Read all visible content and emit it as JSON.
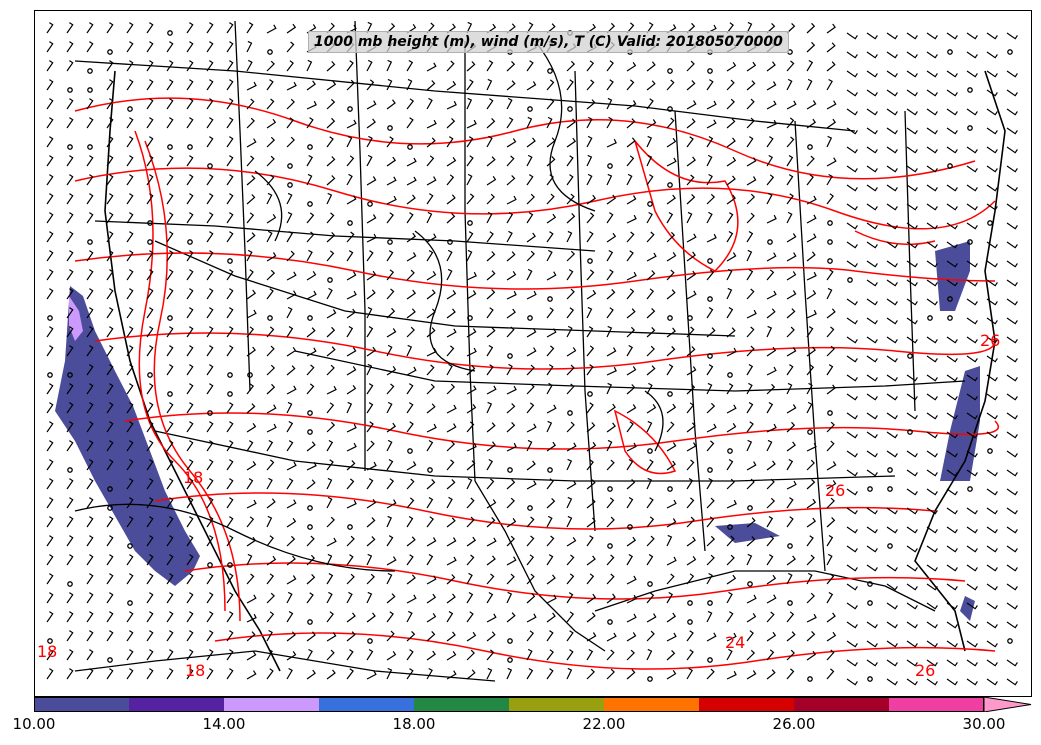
{
  "title": "1000 mb height (m), wind (m/s), T (C) Valid: 201805070000",
  "colorbar": {
    "colors": [
      "#4b4d9a",
      "#5522a2",
      "#cc99ff",
      "#3870dc",
      "#228844",
      "#98a010",
      "#ff7300",
      "#d50000",
      "#a5002a",
      "#f03fa3",
      "#ff99cc"
    ],
    "tick_labels": [
      "10.00",
      "14.00",
      "18.00",
      "22.00",
      "26.00",
      "30.00"
    ],
    "min": 10,
    "max": 30
  },
  "contour_labels": [
    {
      "text": "18",
      "color": "#ff0000"
    },
    {
      "text": "18",
      "color": "#ff0000"
    },
    {
      "text": "18",
      "color": "#ff0000"
    },
    {
      "text": "24",
      "color": "#ff0000"
    },
    {
      "text": "26",
      "color": "#ff0000"
    },
    {
      "text": "26",
      "color": "#ff0000"
    },
    {
      "text": "26",
      "color": "#ff0000"
    }
  ],
  "line_colors": {
    "height": "#000000",
    "temperature": "#ff0000",
    "wind_barb": "#000000",
    "shading": "#4b4d9a"
  }
}
